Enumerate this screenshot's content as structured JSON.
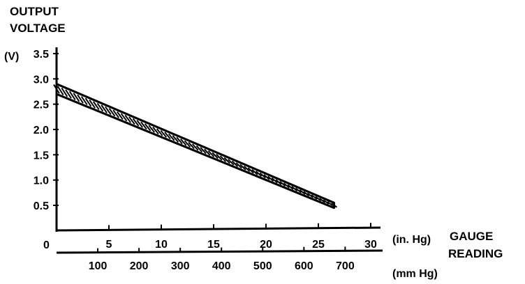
{
  "chart_data": {
    "type": "line",
    "ylabel_lines": [
      "OUTPUT",
      "VOLTAGE"
    ],
    "y_unit": "(V)",
    "y_ticks": [
      "0.5",
      "1.0",
      "1.5",
      "2.0",
      "2.5",
      "3.0",
      "3.5"
    ],
    "ylim": [
      0,
      3.5
    ],
    "x_origin_label": "0",
    "x_inhg_ticks": [
      "5",
      "10",
      "15",
      "20",
      "25",
      "30"
    ],
    "x_inhg_unit": "(in. Hg)",
    "xlim_inhg": [
      0,
      30
    ],
    "x_mmhg_ticks": [
      "100",
      "200",
      "300",
      "400",
      "500",
      "600",
      "700"
    ],
    "x_mmhg_unit": "(mm Hg)",
    "xlabel_lines": [
      "GAUGE",
      "READING"
    ],
    "grid": false,
    "series": [
      {
        "band": true,
        "x_inhg": [
          0,
          26.5
        ],
        "y_upper": [
          2.9,
          0.55
        ],
        "y_lower": [
          2.7,
          0.45
        ]
      }
    ]
  }
}
